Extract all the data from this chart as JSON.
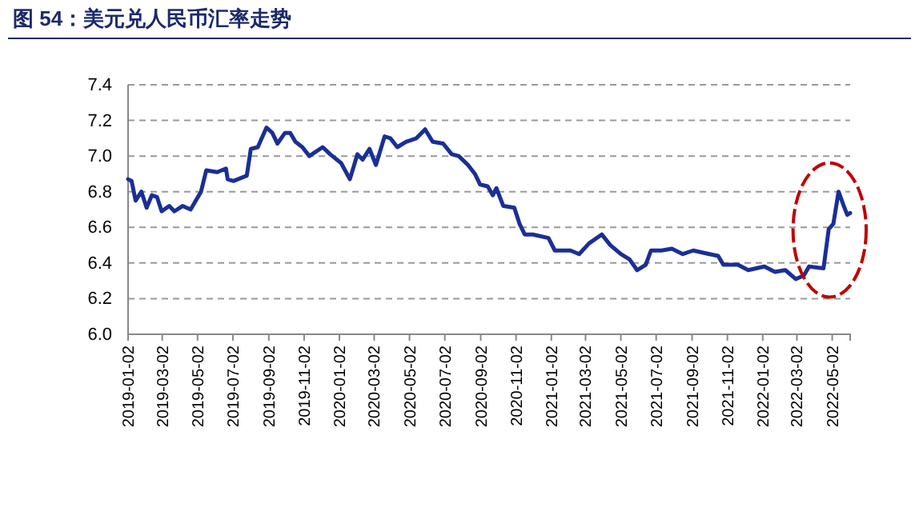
{
  "chart_data": {
    "type": "line",
    "title": "图 54：美元兑人民币汇率走势",
    "x": [
      "2019-01-02",
      "2019-01-08",
      "2019-01-15",
      "2019-01-25",
      "2019-02-03",
      "2019-02-12",
      "2019-02-21",
      "2019-03-01",
      "2019-03-14",
      "2019-03-23",
      "2019-04-06",
      "2019-04-20",
      "2019-04-29",
      "2019-05-08",
      "2019-05-17",
      "2019-06-05",
      "2019-06-20",
      "2019-06-23",
      "2019-07-03",
      "2019-07-26",
      "2019-08-02",
      "2019-08-14",
      "2019-08-29",
      "2019-09-08",
      "2019-09-17",
      "2019-09-30",
      "2019-10-09",
      "2019-10-18",
      "2019-10-30",
      "2019-11-11",
      "2019-12-04",
      "2019-12-17",
      "2020-01-05",
      "2020-01-20",
      "2020-02-02",
      "2020-02-11",
      "2020-02-23",
      "2020-03-05",
      "2020-03-20",
      "2020-03-30",
      "2020-04-11",
      "2020-04-26",
      "2020-05-14",
      "2020-05-29",
      "2020-06-11",
      "2020-06-29",
      "2020-07-14",
      "2020-07-26",
      "2020-08-11",
      "2020-08-23",
      "2020-09-01",
      "2020-09-14",
      "2020-09-23",
      "2020-09-29",
      "2020-10-11",
      "2020-10-30",
      "2020-11-08",
      "2020-11-17",
      "2020-12-01",
      "2020-12-28",
      "2021-01-08",
      "2021-02-04",
      "2021-02-19",
      "2021-03-08",
      "2021-03-30",
      "2021-04-14",
      "2021-05-02",
      "2021-05-17",
      "2021-05-30",
      "2021-06-14",
      "2021-06-23",
      "2021-07-11",
      "2021-07-29",
      "2021-08-17",
      "2021-09-04",
      "2021-10-02",
      "2021-10-17",
      "2021-10-26",
      "2021-11-20",
      "2021-12-08",
      "2022-01-05",
      "2022-01-23",
      "2022-02-10",
      "2022-02-28",
      "2022-03-14",
      "2022-03-23",
      "2022-04-17",
      "2022-04-26",
      "2022-05-04",
      "2022-05-13",
      "2022-05-22",
      "2022-05-28",
      "2022-06-02"
    ],
    "series": [
      {
        "color": "#1a2f96",
        "values": [
          6.87,
          6.86,
          6.75,
          6.8,
          6.71,
          6.78,
          6.77,
          6.69,
          6.72,
          6.69,
          6.72,
          6.7,
          6.75,
          6.8,
          6.92,
          6.91,
          6.93,
          6.87,
          6.86,
          6.89,
          7.04,
          7.05,
          7.16,
          7.13,
          7.07,
          7.13,
          7.13,
          7.08,
          7.05,
          7.0,
          7.05,
          7.01,
          6.96,
          6.87,
          7.01,
          6.98,
          7.04,
          6.95,
          7.11,
          7.1,
          7.05,
          7.08,
          7.1,
          7.15,
          7.08,
          7.07,
          7.01,
          7.0,
          6.95,
          6.9,
          6.84,
          6.83,
          6.78,
          6.82,
          6.72,
          6.71,
          6.62,
          6.56,
          6.56,
          6.54,
          6.47,
          6.47,
          6.45,
          6.51,
          6.56,
          6.5,
          6.45,
          6.42,
          6.36,
          6.39,
          6.47,
          6.47,
          6.48,
          6.45,
          6.47,
          6.45,
          6.44,
          6.39,
          6.39,
          6.36,
          6.38,
          6.35,
          6.36,
          6.31,
          6.33,
          6.38,
          6.37,
          6.59,
          6.62,
          6.8,
          6.72,
          6.67,
          6.68
        ]
      }
    ],
    "xlim": [
      "2019-01-02",
      "2022-06-02"
    ],
    "xticks": [
      "2019-01-02",
      "2019-03-02",
      "2019-05-02",
      "2019-07-02",
      "2019-09-02",
      "2019-11-02",
      "2020-01-02",
      "2020-03-02",
      "2020-05-02",
      "2020-07-02",
      "2020-09-02",
      "2020-11-02",
      "2021-01-02",
      "2021-03-02",
      "2021-05-02",
      "2021-07-02",
      "2021-09-02",
      "2021-11-02",
      "2022-01-02",
      "2022-03-02",
      "2022-05-02"
    ],
    "ylim": [
      6.0,
      7.4
    ],
    "yticks": [
      {
        "value": 6.0,
        "label": "6.0"
      },
      {
        "value": 6.2,
        "label": "6.2"
      },
      {
        "value": 6.4,
        "label": "6.4"
      },
      {
        "value": 6.6,
        "label": "6.6"
      },
      {
        "value": 6.8,
        "label": "6.8"
      },
      {
        "value": 7.0,
        "label": "7.0"
      },
      {
        "value": 7.2,
        "label": "7.2"
      },
      {
        "value": 7.4,
        "label": "7.4"
      }
    ],
    "grid": "y",
    "marker": "none",
    "line_style": "solid"
  }
}
